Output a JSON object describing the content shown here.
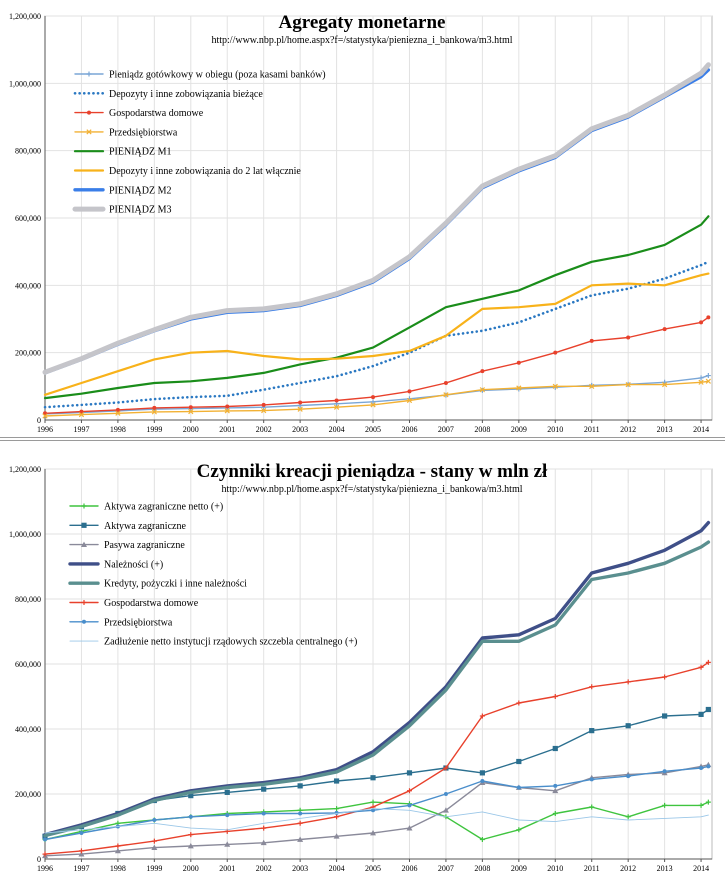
{
  "chart_data": [
    {
      "type": "line",
      "title": "Agregaty monetarne",
      "subtitle": "http://www.nbp.pl/home.aspx?f=/statystyka/pieniezna_i_bankowa/m3.html",
      "xlabel": "",
      "ylabel": "",
      "x_ticks": [
        "1996",
        "1997",
        "1998",
        "1999",
        "2000",
        "2001",
        "2002",
        "2003",
        "2004",
        "2005",
        "2006",
        "2007",
        "2008",
        "2009",
        "2010",
        "2011",
        "2012",
        "2013",
        "2014"
      ],
      "y_ticks": [
        "0",
        "200,000",
        "400,000",
        "600,000",
        "800,000",
        "1,000,000",
        "1,200,000"
      ],
      "xlim": [
        1996,
        2014.3
      ],
      "ylim": [
        0,
        1200000
      ],
      "grid": true,
      "legend_position": "top-left",
      "x": [
        1996,
        1997,
        1998,
        1999,
        2000,
        2001,
        2002,
        2003,
        2004,
        2005,
        2006,
        2007,
        2008,
        2009,
        2010,
        2011,
        2012,
        2013,
        2014,
        2014.2
      ],
      "series": [
        {
          "name": "Pieniądz gotówkowy w obiegu (poza kasami banków)",
          "color": "#7aa6d6",
          "style": "line-plus",
          "values": [
            18000,
            22000,
            27000,
            32000,
            34000,
            36000,
            38000,
            43000,
            48000,
            54000,
            63000,
            74000,
            88000,
            92000,
            97000,
            103000,
            106000,
            112000,
            125000,
            132000
          ]
        },
        {
          "name": "Depozyty i inne zobowiązania bieżące",
          "color": "#2a78c2",
          "style": "dotted",
          "values": [
            38000,
            45000,
            52000,
            62000,
            68000,
            72000,
            90000,
            110000,
            130000,
            160000,
            200000,
            250000,
            265000,
            290000,
            330000,
            370000,
            390000,
            420000,
            460000,
            470000
          ]
        },
        {
          "name": "Gospodarstwa domowe",
          "color": "#e8412c",
          "style": "line-marker",
          "values": [
            20000,
            25000,
            30000,
            36000,
            38000,
            40000,
            45000,
            52000,
            58000,
            68000,
            85000,
            110000,
            145000,
            170000,
            200000,
            235000,
            245000,
            270000,
            290000,
            305000
          ]
        },
        {
          "name": "Przedsiębiorstwa",
          "color": "#f2b134",
          "style": "line-x",
          "values": [
            12000,
            16000,
            20000,
            24000,
            25000,
            27000,
            28000,
            32000,
            38000,
            45000,
            58000,
            75000,
            90000,
            95000,
            100000,
            100000,
            105000,
            105000,
            112000,
            115000
          ]
        },
        {
          "name": "PIENIĄDZ M1",
          "color": "#1a8d1a",
          "style": "line",
          "values": [
            65000,
            78000,
            95000,
            110000,
            115000,
            125000,
            140000,
            165000,
            185000,
            215000,
            275000,
            335000,
            360000,
            385000,
            430000,
            470000,
            490000,
            520000,
            580000,
            605000
          ]
        },
        {
          "name": "Depozyty i inne zobowiązania do 2 lat włącznie",
          "color": "#f8b21a",
          "style": "line",
          "values": [
            75000,
            110000,
            145000,
            180000,
            200000,
            205000,
            190000,
            180000,
            182000,
            190000,
            205000,
            250000,
            330000,
            335000,
            345000,
            400000,
            405000,
            400000,
            430000,
            435000
          ]
        },
        {
          "name": "PIENIĄDZ M2",
          "color": "#3a7ee8",
          "style": "thick",
          "values": [
            140000,
            180000,
            225000,
            265000,
            300000,
            320000,
            325000,
            340000,
            370000,
            410000,
            480000,
            580000,
            690000,
            740000,
            780000,
            860000,
            900000,
            960000,
            1020000,
            1040000
          ]
        },
        {
          "name": "PIENIĄDZ M3",
          "color": "#c5c5ca",
          "style": "xthick",
          "values": [
            142000,
            182000,
            228000,
            268000,
            305000,
            325000,
            330000,
            345000,
            375000,
            415000,
            485000,
            585000,
            695000,
            745000,
            785000,
            865000,
            905000,
            965000,
            1030000,
            1055000
          ]
        }
      ]
    },
    {
      "type": "line",
      "title": "Czynniki kreacji pieniądza - stany w mln zł",
      "subtitle": "http://www.nbp.pl/home.aspx?f=/statystyka/pieniezna_i_bankowa/m3.html",
      "xlabel": "",
      "ylabel": "",
      "x_ticks": [
        "1996",
        "1997",
        "1998",
        "1999",
        "2000",
        "2001",
        "2002",
        "2003",
        "2004",
        "2005",
        "2006",
        "2007",
        "2008",
        "2009",
        "2010",
        "2011",
        "2012",
        "2013",
        "2014"
      ],
      "y_ticks": [
        "0",
        "200,000",
        "400,000",
        "600,000",
        "800,000",
        "1,000,000",
        "1,200,000"
      ],
      "xlim": [
        1996,
        2014.3
      ],
      "ylim": [
        0,
        1200000
      ],
      "grid": true,
      "legend_position": "top-left",
      "x": [
        1996,
        1997,
        1998,
        1999,
        2000,
        2001,
        2002,
        2003,
        2004,
        2005,
        2006,
        2007,
        2008,
        2009,
        2010,
        2011,
        2012,
        2013,
        2014,
        2014.2
      ],
      "series": [
        {
          "name": "Aktywa zagraniczne netto (+)",
          "color": "#3fc43f",
          "style": "line-plus",
          "values": [
            60000,
            85000,
            110000,
            120000,
            130000,
            140000,
            145000,
            150000,
            155000,
            175000,
            170000,
            130000,
            60000,
            90000,
            140000,
            160000,
            130000,
            165000,
            165000,
            175000
          ]
        },
        {
          "name": "Aktywa zagraniczne",
          "color": "#2b6f8f",
          "style": "square",
          "values": [
            70000,
            100000,
            140000,
            180000,
            195000,
            205000,
            215000,
            225000,
            240000,
            250000,
            265000,
            280000,
            265000,
            300000,
            340000,
            395000,
            410000,
            440000,
            445000,
            460000
          ]
        },
        {
          "name": "Pasywa zagraniczne",
          "color": "#8a8a9a",
          "style": "triangle",
          "values": [
            10000,
            15000,
            25000,
            35000,
            40000,
            45000,
            50000,
            60000,
            70000,
            80000,
            95000,
            150000,
            235000,
            220000,
            210000,
            250000,
            260000,
            265000,
            285000,
            290000
          ]
        },
        {
          "name": "Należności (+)",
          "color": "#3f4f88",
          "style": "thick",
          "values": [
            75000,
            105000,
            140000,
            185000,
            210000,
            225000,
            235000,
            250000,
            275000,
            330000,
            420000,
            530000,
            680000,
            690000,
            740000,
            880000,
            910000,
            950000,
            1010000,
            1035000
          ]
        },
        {
          "name": "Kredyty, pożyczki i inne należności",
          "color": "#5a8f8f",
          "style": "thick",
          "values": [
            72000,
            100000,
            135000,
            180000,
            205000,
            220000,
            230000,
            245000,
            268000,
            320000,
            410000,
            520000,
            670000,
            670000,
            720000,
            860000,
            880000,
            910000,
            960000,
            975000
          ]
        },
        {
          "name": "Gospodarstwa domowe",
          "color": "#e8412c",
          "style": "line-plus",
          "values": [
            15000,
            25000,
            40000,
            55000,
            75000,
            85000,
            95000,
            110000,
            130000,
            160000,
            210000,
            280000,
            440000,
            480000,
            500000,
            530000,
            545000,
            560000,
            590000,
            605000
          ]
        },
        {
          "name": "Przedsiębiorstwa",
          "color": "#4a8ecb",
          "style": "dot",
          "values": [
            60000,
            80000,
            100000,
            120000,
            130000,
            135000,
            140000,
            140000,
            142000,
            150000,
            165000,
            200000,
            240000,
            220000,
            225000,
            245000,
            255000,
            270000,
            280000,
            285000
          ]
        },
        {
          "name": "Zadłużenie netto instytucji rządowych szczebla centralnego (+)",
          "color": "#9bc7e8",
          "style": "thin",
          "values": [
            80000,
            90000,
            100000,
            110000,
            95000,
            90000,
            110000,
            125000,
            140000,
            155000,
            150000,
            130000,
            145000,
            120000,
            115000,
            130000,
            120000,
            125000,
            130000,
            135000
          ]
        }
      ]
    }
  ]
}
